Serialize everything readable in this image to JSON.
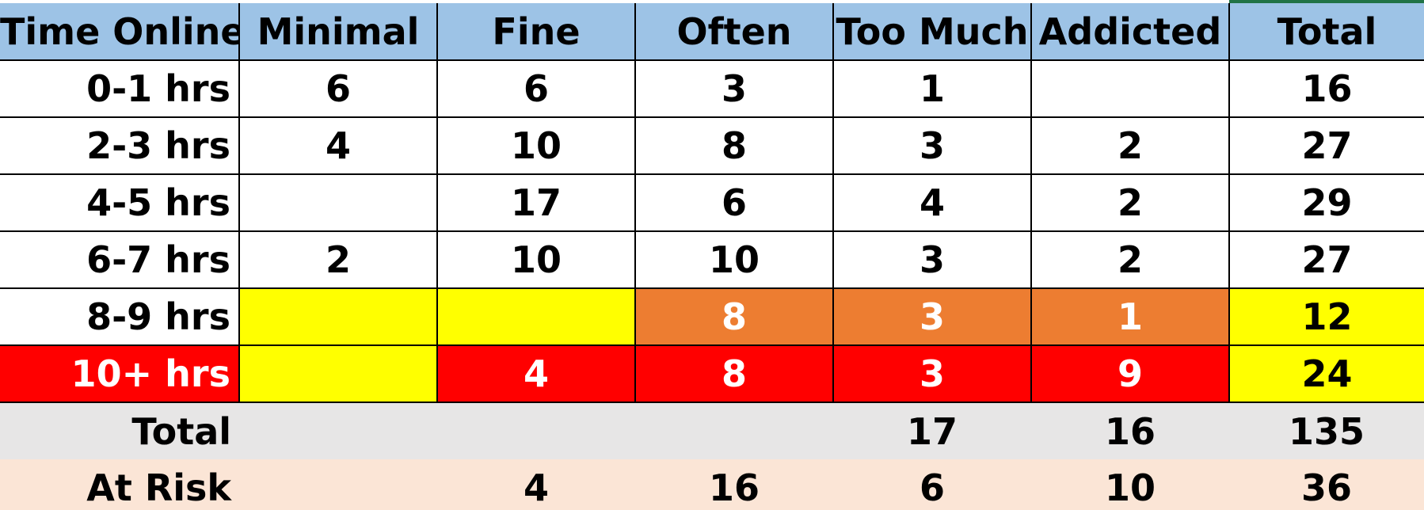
{
  "colors": {
    "header_bg": "#9dc3e6",
    "yellow": "#ffff00",
    "orange": "#ed7d31",
    "red": "#ff0000",
    "total_row_bg": "#e7e6e6",
    "at_risk_row_bg": "#fbe5d6",
    "top_accent": "#217346"
  },
  "headers": [
    "Time Online",
    "Minimal",
    "Fine",
    "Often",
    "Too Much",
    "Addicted",
    "Total"
  ],
  "rows": [
    {
      "label": "0-1 hrs",
      "cells": [
        "6",
        "6",
        "3",
        "1",
        "",
        "16"
      ]
    },
    {
      "label": "2-3 hrs",
      "cells": [
        "4",
        "10",
        "8",
        "3",
        "2",
        "27"
      ]
    },
    {
      "label": "4-5 hrs",
      "cells": [
        "",
        "17",
        "6",
        "4",
        "2",
        "29"
      ]
    },
    {
      "label": "6-7 hrs",
      "cells": [
        "2",
        "10",
        "10",
        "3",
        "2",
        "27"
      ]
    },
    {
      "label": "8-9 hrs",
      "cells": [
        "",
        "",
        "8",
        "3",
        "1",
        "12"
      ]
    },
    {
      "label": "10+ hrs",
      "cells": [
        "",
        "4",
        "8",
        "3",
        "9",
        "24"
      ]
    }
  ],
  "totals": {
    "label": "Total",
    "cells": [
      "",
      "",
      "",
      "17",
      "16",
      "135"
    ]
  },
  "at_risk": {
    "label": "At Risk",
    "cells": [
      "",
      "4",
      "16",
      "6",
      "10",
      "36"
    ]
  }
}
